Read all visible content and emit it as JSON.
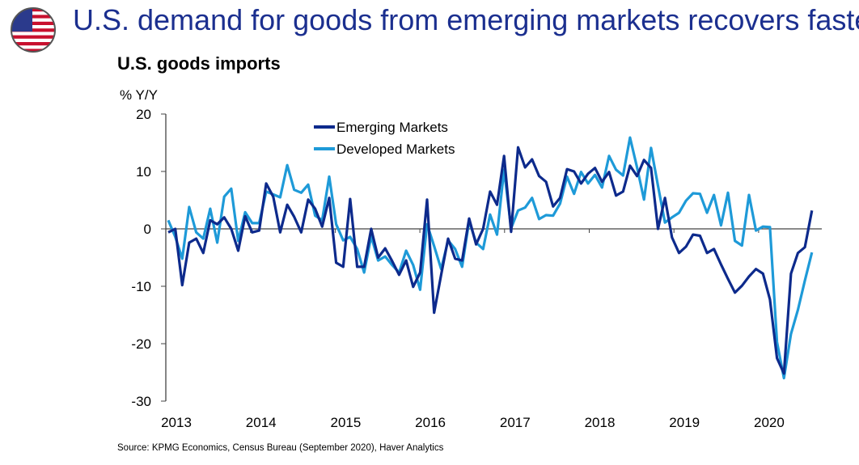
{
  "header": {
    "title": "U.S. demand for goods from emerging markets recovers faster",
    "flag_icon": "us-flag-icon"
  },
  "source": "Source: KPMG Economics, Census Bureau (September 2020), Haver Analytics",
  "chart_data": {
    "type": "line",
    "title": "U.S. goods imports",
    "ylabel": "% Y/Y",
    "xlabel": "",
    "ylim": [
      -30,
      20
    ],
    "yticks": [
      "20",
      "10",
      "0",
      "-10",
      "-20",
      "-30"
    ],
    "xticks": [
      "2013",
      "2014",
      "2015",
      "2016",
      "2017",
      "2018",
      "2019",
      "2020"
    ],
    "x_range": [
      "2013-01",
      "2020-09"
    ],
    "frequency": "monthly",
    "grid": false,
    "legend": "top-center",
    "colors": {
      "Emerging Markets": "#0d2a8c",
      "Developed Markets": "#1e9ad8"
    },
    "series": [
      {
        "name": "Emerging Markets",
        "values": [
          -0.6,
          0,
          -9.8,
          -2.4,
          -1.7,
          -4.2,
          1.5,
          0.8,
          2,
          0,
          -3.8,
          2.2,
          -0.6,
          -0.3,
          7.9,
          5.6,
          -0.6,
          4.2,
          2.1,
          -0.6,
          5.1,
          3.5,
          0.4,
          5.4,
          -5.9,
          -6.6,
          5.2,
          -6.6,
          -6.6,
          0,
          -5,
          -3.4,
          -5.6,
          -8,
          -5.5,
          -10.1,
          -7.6,
          5.1,
          -14.6,
          -8,
          -1.7,
          -5.2,
          -5.5,
          1.8,
          -2.7,
          0,
          6.5,
          4.2,
          12.7,
          -0.5,
          14.2,
          10.7,
          12.1,
          9.2,
          8.2,
          3.9,
          5.4,
          10.4,
          10,
          7.9,
          9.6,
          10.6,
          8.2,
          9.9,
          5.8,
          6.5,
          11,
          9.2,
          12,
          10.6,
          0,
          5.4,
          -1.5,
          -4.2,
          -3.1,
          -1,
          -1.2,
          -4.2,
          -3.5,
          -6.2,
          -8.7,
          -11.1,
          -9.9,
          -8.3,
          -7,
          -7.8,
          -12.3,
          -22.5,
          -25.2,
          -7.8,
          -4.2,
          -3.2,
          3.2
        ]
      },
      {
        "name": "Developed Markets",
        "values": [
          1.5,
          -1.4,
          -5.2,
          3.8,
          -0.6,
          -1.7,
          3.5,
          -2.4,
          5.6,
          7,
          -2.1,
          2.9,
          1,
          1,
          6.5,
          6,
          5.5,
          11.1,
          6.8,
          6.3,
          7.7,
          2.3,
          1.5,
          9.1,
          0.8,
          -2,
          -1.4,
          -3.5,
          -7.6,
          -1.3,
          -5.5,
          -4.8,
          -6.3,
          -7.6,
          -3.8,
          -6.3,
          -10.6,
          0.8,
          -3,
          -7,
          -2,
          -3.5,
          -6.6,
          1.4,
          -2.4,
          -3.5,
          2.5,
          -1,
          10.3,
          0.1,
          3.2,
          3.7,
          5.4,
          1.7,
          2.4,
          2.3,
          4.4,
          9.1,
          6.1,
          9.9,
          7.9,
          9.4,
          7.2,
          12.7,
          10.3,
          9.3,
          15.9,
          10.7,
          5.1,
          14.1,
          7.5,
          1.1,
          2,
          2.8,
          4.9,
          6.2,
          6.1,
          2.8,
          5.9,
          0.6,
          6.3,
          -2.1,
          -2.9,
          5.9,
          -0.3,
          0.4,
          0.3,
          -19.7,
          -26,
          -18.3,
          -14.1,
          -9,
          -4.1
        ]
      }
    ]
  }
}
